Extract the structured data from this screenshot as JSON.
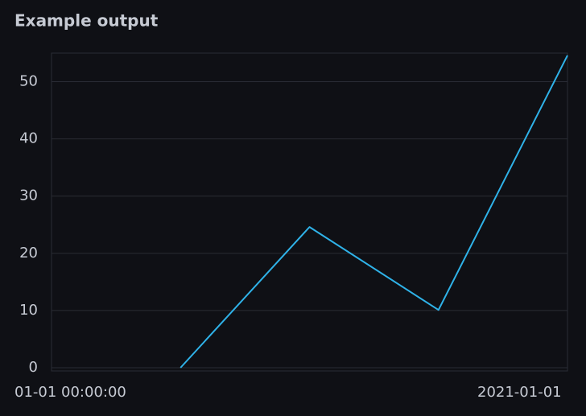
{
  "chart_data": {
    "type": "line",
    "title": "Example output",
    "categories": [
      null,
      null,
      null,
      null
    ],
    "series": [
      {
        "name": null,
        "color": "#2fb2e8",
        "values": [
          0,
          24.6,
          10.1,
          54.6
        ]
      }
    ],
    "ylim": [
      0,
      55
    ],
    "yticks": [
      0,
      10,
      20,
      30,
      40,
      50
    ],
    "grid": true,
    "x_labels": [
      "01-01 00:00:00",
      "2021-01-01"
    ]
  }
}
